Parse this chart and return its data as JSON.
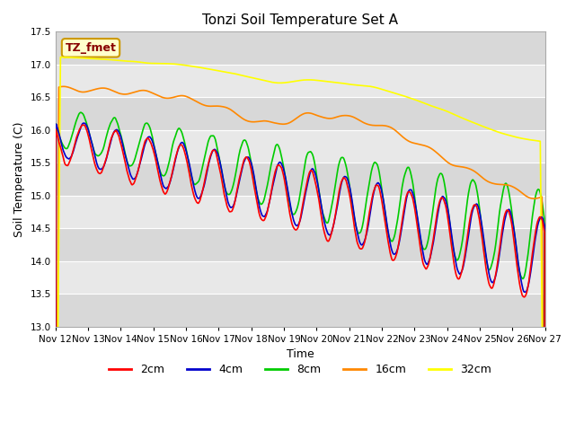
{
  "title": "Tonzi Soil Temperature Set A",
  "xlabel": "Time",
  "ylabel": "Soil Temperature (C)",
  "ylim": [
    13.0,
    17.5
  ],
  "yticks": [
    13.0,
    13.5,
    14.0,
    14.5,
    15.0,
    15.5,
    16.0,
    16.5,
    17.0,
    17.5
  ],
  "xtick_labels": [
    "Nov 12",
    "Nov 13",
    "Nov 14",
    "Nov 15",
    "Nov 16",
    "Nov 17",
    "Nov 18",
    "Nov 19",
    "Nov 20",
    "Nov 21",
    "Nov 22",
    "Nov 23",
    "Nov 24",
    "Nov 25",
    "Nov 26",
    "Nov 27"
  ],
  "series_colors": [
    "#ff0000",
    "#0000cc",
    "#00cc00",
    "#ff8800",
    "#ffff00"
  ],
  "series_labels": [
    "2cm",
    "4cm",
    "8cm",
    "16cm",
    "32cm"
  ],
  "legend_label": "TZ_fmet",
  "legend_bg": "#ffffcc",
  "legend_border": "#cc9900",
  "legend_text_color": "#880000",
  "bg_color": "#ffffff",
  "plot_bg_color": "#e8e8e8",
  "grid_color": "#ffffff",
  "linewidth": 1.2
}
